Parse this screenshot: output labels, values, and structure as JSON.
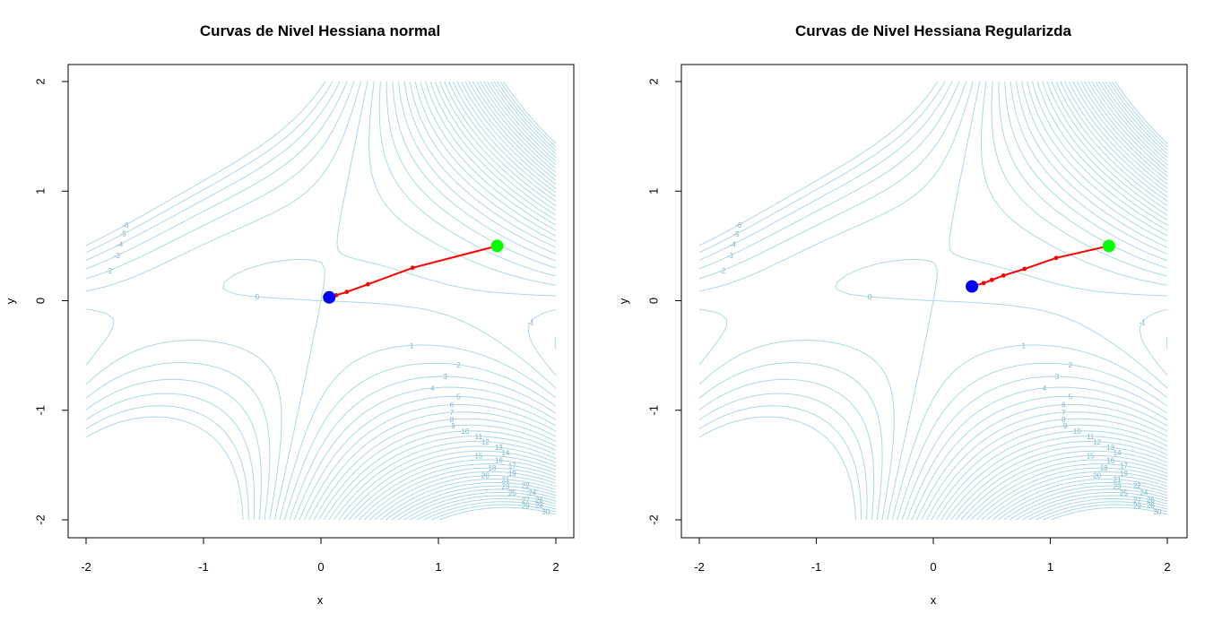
{
  "chart_data": [
    {
      "type": "line",
      "title": "Curvas de Nivel Hessiana normal",
      "xlabel": "x",
      "ylabel": "y",
      "xlim": [
        -2,
        2
      ],
      "ylim": [
        -2,
        2
      ],
      "x_ticks": [
        "-2",
        "-1",
        "0",
        "1",
        "2"
      ],
      "y_ticks": [
        "-2",
        "-1",
        "0",
        "1",
        "2"
      ],
      "contour_color": "#add8e6",
      "contour_levels": [
        -6,
        -5,
        -4,
        -3,
        -2,
        -1,
        0,
        1,
        2,
        3,
        4,
        5,
        6,
        7,
        8,
        9,
        10,
        11,
        12,
        13,
        14,
        15,
        16,
        17,
        18,
        19,
        20,
        21,
        22,
        23,
        24,
        25,
        26,
        27,
        28,
        29,
        30
      ],
      "path_color": "#ff0000",
      "path": [
        {
          "x": 1.5,
          "y": 0.5
        },
        {
          "x": 0.78,
          "y": 0.3
        },
        {
          "x": 0.4,
          "y": 0.15
        },
        {
          "x": 0.22,
          "y": 0.08
        },
        {
          "x": 0.13,
          "y": 0.05
        },
        {
          "x": 0.09,
          "y": 0.04
        },
        {
          "x": 0.07,
          "y": 0.03
        }
      ],
      "start_point": {
        "x": 1.5,
        "y": 0.5,
        "color": "#00ff00"
      },
      "end_point": {
        "x": 0.07,
        "y": 0.03,
        "color": "#0000ff"
      },
      "grid": false
    },
    {
      "type": "line",
      "title": "Curvas de Nivel Hessiana Regularizda",
      "xlabel": "x",
      "ylabel": "y",
      "xlim": [
        -2,
        2
      ],
      "ylim": [
        -2,
        2
      ],
      "x_ticks": [
        "-2",
        "-1",
        "0",
        "1",
        "2"
      ],
      "y_ticks": [
        "-2",
        "-1",
        "0",
        "1",
        "2"
      ],
      "contour_color": "#add8e6",
      "contour_levels": [
        -6,
        -5,
        -4,
        -3,
        -2,
        -1,
        0,
        1,
        2,
        3,
        4,
        5,
        6,
        7,
        8,
        9,
        10,
        11,
        12,
        13,
        14,
        15,
        16,
        17,
        18,
        19,
        20,
        21,
        22,
        23,
        24,
        25,
        26,
        27,
        28,
        29,
        30
      ],
      "path_color": "#ff0000",
      "path": [
        {
          "x": 1.5,
          "y": 0.5
        },
        {
          "x": 1.05,
          "y": 0.39
        },
        {
          "x": 0.78,
          "y": 0.29
        },
        {
          "x": 0.6,
          "y": 0.23
        },
        {
          "x": 0.5,
          "y": 0.19
        },
        {
          "x": 0.43,
          "y": 0.16
        },
        {
          "x": 0.33,
          "y": 0.13
        }
      ],
      "start_point": {
        "x": 1.5,
        "y": 0.5,
        "color": "#00ff00"
      },
      "end_point": {
        "x": 0.33,
        "y": 0.13,
        "color": "#0000ff"
      },
      "grid": false
    }
  ]
}
